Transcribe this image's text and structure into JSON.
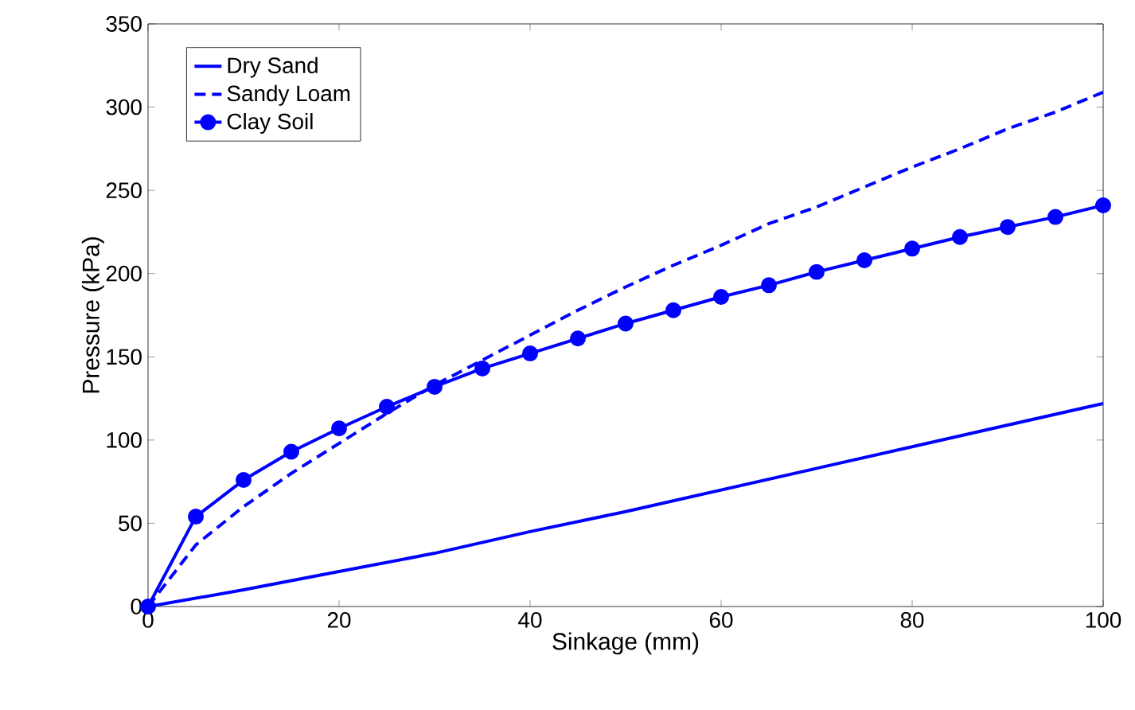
{
  "chart_data": {
    "type": "line",
    "xlabel": "Sinkage (mm)",
    "ylabel": "Pressure (kPa)",
    "xlim": [
      0,
      100
    ],
    "ylim": [
      0,
      350
    ],
    "xticks": [
      0,
      20,
      40,
      60,
      80,
      100
    ],
    "yticks": [
      0,
      50,
      100,
      150,
      200,
      250,
      300,
      350
    ],
    "legend": "top left",
    "grid": false,
    "series": [
      {
        "name": "Dry Sand",
        "color": "#0000ff",
        "line_style": "solid",
        "marker": "none",
        "x": [
          0,
          10,
          20,
          30,
          40,
          50,
          60,
          70,
          80,
          90,
          100
        ],
        "values": [
          0,
          10,
          21,
          32,
          45,
          57,
          70,
          83,
          96,
          109,
          122
        ]
      },
      {
        "name": "Sandy Loam",
        "color": "#0000ff",
        "line_style": "dashed",
        "marker": "none",
        "x": [
          0,
          5,
          10,
          15,
          20,
          25,
          30,
          35,
          40,
          45,
          50,
          55,
          60,
          65,
          70,
          75,
          80,
          85,
          90,
          95,
          100
        ],
        "values": [
          0,
          37,
          60,
          80,
          98,
          116,
          133,
          148,
          163,
          178,
          192,
          205,
          217,
          230,
          240,
          252,
          264,
          275,
          287,
          297,
          309
        ]
      },
      {
        "name": "Clay Soil",
        "color": "#0000ff",
        "line_style": "solid",
        "marker": "circle",
        "x": [
          0,
          5,
          10,
          15,
          20,
          25,
          30,
          35,
          40,
          45,
          50,
          55,
          60,
          65,
          70,
          75,
          80,
          85,
          90,
          95,
          100
        ],
        "values": [
          0,
          54,
          76,
          93,
          107,
          120,
          132,
          143,
          152,
          161,
          170,
          178,
          186,
          193,
          201,
          208,
          215,
          222,
          228,
          234,
          241
        ]
      }
    ]
  }
}
